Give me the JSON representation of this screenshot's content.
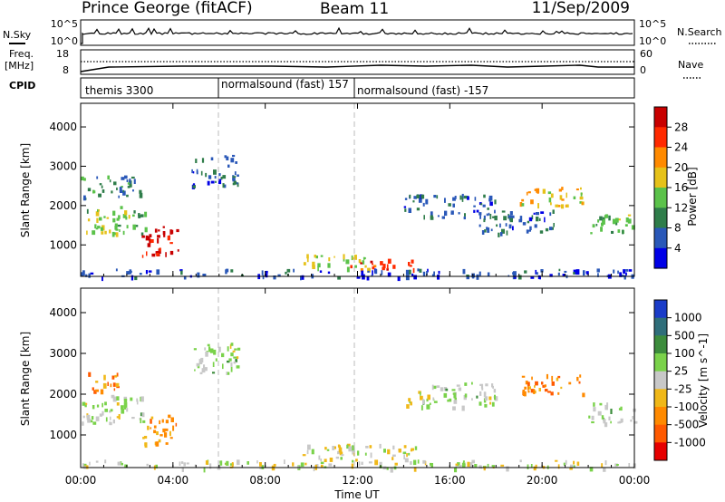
{
  "header": {
    "station": "Prince George (fitACF)",
    "beam": "Beam 11",
    "date": "11/Sep/2009"
  },
  "top_panels": {
    "nsky_label": "N.Sky",
    "nsky_ticks": [
      "10^5",
      "10^0"
    ],
    "nsearch_ticks": [
      "10^5",
      "10^0"
    ],
    "nsearch_label": "N.Search",
    "freq_label": "Freq.",
    "freq_unit": "[MHz]",
    "freq_ticks": [
      "18",
      "8"
    ],
    "nave_ticks": [
      "60",
      "0"
    ],
    "nave_label": "Nave",
    "cpid_label": "CPID",
    "cpid_segments": [
      "themis 3300",
      "normalsound (fast) 157",
      "normalsound (fast) -157"
    ]
  },
  "x_axis": {
    "ticks": [
      "00:00",
      "04:00",
      "08:00",
      "12:00",
      "16:00",
      "20:00",
      "00:00"
    ],
    "label": "Time UT"
  },
  "chart_data": [
    {
      "type": "heatmap",
      "name": "power-panel",
      "ylabel": "Slant Range [km]",
      "yticks": [
        1000,
        2000,
        3000,
        4000
      ],
      "ylim": [
        200,
        4600
      ],
      "xlim_hours": [
        0,
        24
      ],
      "colorbar_label": "Power [dB]",
      "colorbar_ticks": [
        "4",
        "8",
        "12",
        "16",
        "20",
        "24",
        "28"
      ],
      "colorbar_colors": [
        "#0000e6",
        "#2a58b8",
        "#2f7d4a",
        "#5bc24a",
        "#e6c21a",
        "#ff8a00",
        "#ff2a00",
        "#c80000"
      ],
      "echo_regions": [
        {
          "t0": 0.0,
          "t1": 2.8,
          "r0": 1300,
          "r1": 2000,
          "level": 0.45
        },
        {
          "t0": 0.0,
          "t1": 2.6,
          "r0": 2200,
          "r1": 2800,
          "level": 0.3
        },
        {
          "t0": 2.6,
          "t1": 4.2,
          "r0": 700,
          "r1": 1500,
          "level": 0.95
        },
        {
          "t0": 4.8,
          "t1": 6.8,
          "r0": 2500,
          "r1": 3300,
          "level": 0.2
        },
        {
          "t0": 9.6,
          "t1": 12.5,
          "r0": 400,
          "r1": 800,
          "level": 0.5
        },
        {
          "t0": 11.5,
          "t1": 14.5,
          "r0": 400,
          "r1": 650,
          "level": 0.8
        },
        {
          "t0": 14.0,
          "t1": 18.0,
          "r0": 1700,
          "r1": 2300,
          "level": 0.2
        },
        {
          "t0": 17.0,
          "t1": 20.5,
          "r0": 1300,
          "r1": 1900,
          "level": 0.2
        },
        {
          "t0": 19.0,
          "t1": 21.8,
          "r0": 2000,
          "r1": 2500,
          "level": 0.6
        },
        {
          "t0": 22.0,
          "t1": 24.0,
          "r0": 1300,
          "r1": 1800,
          "level": 0.4
        },
        {
          "t0": 0.0,
          "t1": 24.0,
          "r0": 200,
          "r1": 400,
          "level": 0.15
        }
      ]
    },
    {
      "type": "heatmap",
      "name": "velocity-panel",
      "ylabel": "Slant Range [km]",
      "yticks": [
        1000,
        2000,
        3000,
        4000
      ],
      "ylim": [
        200,
        4600
      ],
      "xlim_hours": [
        0,
        24
      ],
      "colorbar_label": "Velocity [m s^-1]",
      "colorbar_ticks": [
        "1000",
        "500",
        "100",
        "25",
        "-25",
        "-100",
        "-500",
        "-1000"
      ],
      "colorbar_colors": [
        "#1a3cc8",
        "#2f6e7a",
        "#3c8c3c",
        "#7ad24a",
        "#c8c8c8",
        "#f0b818",
        "#ff8a00",
        "#ff5a00",
        "#e60000"
      ],
      "echo_regions": [
        {
          "t0": 0.0,
          "t1": 2.8,
          "r0": 1300,
          "r1": 2000,
          "level": 0.45
        },
        {
          "t0": 0.3,
          "t1": 1.6,
          "r0": 2100,
          "r1": 2600,
          "level": 0.7
        },
        {
          "t0": 2.6,
          "t1": 4.2,
          "r0": 800,
          "r1": 1500,
          "level": 0.72
        },
        {
          "t0": 4.8,
          "t1": 6.8,
          "r0": 2500,
          "r1": 3300,
          "level": 0.45
        },
        {
          "t0": 9.6,
          "t1": 14.5,
          "r0": 400,
          "r1": 800,
          "level": 0.52
        },
        {
          "t0": 14.0,
          "t1": 18.0,
          "r0": 1700,
          "r1": 2300,
          "level": 0.45
        },
        {
          "t0": 19.0,
          "t1": 21.8,
          "r0": 2000,
          "r1": 2500,
          "level": 0.76
        },
        {
          "t0": 22.0,
          "t1": 24.0,
          "r0": 1300,
          "r1": 1800,
          "level": 0.45
        },
        {
          "t0": 0.0,
          "t1": 24.0,
          "r0": 200,
          "r1": 400,
          "level": 0.5
        }
      ]
    }
  ]
}
